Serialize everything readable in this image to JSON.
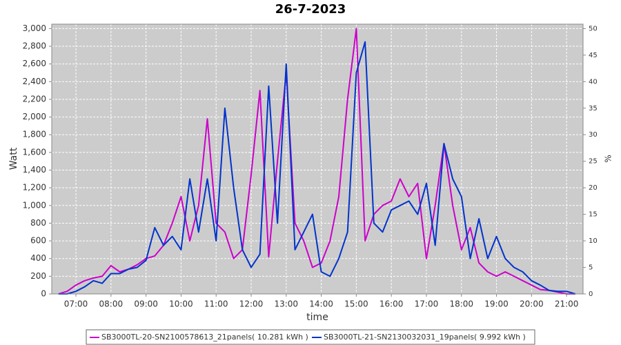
{
  "chart_data": {
    "type": "line",
    "title": "26-7-2023",
    "x_label": "time",
    "y_label": "Watt",
    "y2_label": "%",
    "x": [
      6.5,
      6.75,
      7,
      7.25,
      7.5,
      7.75,
      8,
      8.25,
      8.5,
      8.75,
      9,
      9.25,
      9.5,
      9.75,
      10,
      10.25,
      10.5,
      10.75,
      11,
      11.25,
      11.5,
      11.75,
      12,
      12.25,
      12.5,
      12.75,
      13,
      13.25,
      13.5,
      13.75,
      14,
      14.25,
      14.5,
      14.75,
      15,
      15.25,
      15.5,
      15.75,
      16,
      16.25,
      16.5,
      16.75,
      17,
      17.25,
      17.5,
      17.75,
      18,
      18.25,
      18.5,
      18.75,
      19,
      19.25,
      19.5,
      19.75,
      20,
      20.25,
      20.5,
      20.75,
      21,
      21.25
    ],
    "series": [
      {
        "name": "SB3000TL-20-SN2100578613_21panels( 10.281 kWh )",
        "color": "#cc00cc",
        "values": [
          0,
          30,
          100,
          150,
          180,
          200,
          320,
          250,
          280,
          330,
          400,
          430,
          550,
          800,
          1100,
          600,
          1000,
          1980,
          800,
          700,
          400,
          500,
          1350,
          2300,
          420,
          1500,
          2500,
          800,
          600,
          300,
          350,
          600,
          1100,
          2200,
          3000,
          600,
          900,
          1000,
          1050,
          1300,
          1100,
          1250,
          400,
          1000,
          1700,
          1000,
          500,
          750,
          350,
          250,
          200,
          250,
          200,
          150,
          100,
          50,
          40,
          20,
          0,
          0
        ]
      },
      {
        "name": "SB3000TL-21-SN2130032031_19panels( 9.992 kWh )",
        "color": "#0033cc",
        "values": [
          0,
          0,
          30,
          80,
          150,
          120,
          230,
          230,
          280,
          300,
          380,
          750,
          550,
          650,
          500,
          1300,
          700,
          1300,
          600,
          2100,
          1200,
          500,
          300,
          450,
          2350,
          800,
          2600,
          500,
          700,
          900,
          250,
          200,
          400,
          700,
          2500,
          2850,
          800,
          700,
          950,
          1000,
          1050,
          900,
          1250,
          550,
          1700,
          1300,
          1100,
          400,
          850,
          400,
          650,
          400,
          300,
          250,
          150,
          100,
          40,
          30,
          30,
          0
        ]
      }
    ],
    "xlim": [
      6.31,
      21.47
    ],
    "xticks": [
      {
        "value": 7,
        "label": "07:00"
      },
      {
        "value": 8,
        "label": "08:00"
      },
      {
        "value": 9,
        "label": "09:00"
      },
      {
        "value": 10,
        "label": "10:00"
      },
      {
        "value": 11,
        "label": "11:00"
      },
      {
        "value": 12,
        "label": "12:00"
      },
      {
        "value": 13,
        "label": "13:00"
      },
      {
        "value": 14,
        "label": "14:00"
      },
      {
        "value": 15,
        "label": "15:00"
      },
      {
        "value": 16,
        "label": "16:00"
      },
      {
        "value": 17,
        "label": "17:00"
      },
      {
        "value": 18,
        "label": "18:00"
      },
      {
        "value": 19,
        "label": "19:00"
      },
      {
        "value": 20,
        "label": "20:00"
      },
      {
        "value": 21,
        "label": "21:00"
      }
    ],
    "ylim": [
      0,
      3050
    ],
    "yticks": [
      0,
      200,
      400,
      600,
      800,
      {
        "value": 1000,
        "label": "1,000"
      },
      {
        "value": 1200,
        "label": "1,200"
      },
      {
        "value": 1400,
        "label": "1,400"
      },
      {
        "value": 1600,
        "label": "1,600"
      },
      {
        "value": 1800,
        "label": "1,800"
      },
      {
        "value": 2000,
        "label": "2,000"
      },
      {
        "value": 2200,
        "label": "2,200"
      },
      {
        "value": 2400,
        "label": "2,400"
      },
      {
        "value": 2600,
        "label": "2,600"
      },
      {
        "value": 2800,
        "label": "2,800"
      },
      {
        "value": 3000,
        "label": "3,000"
      }
    ],
    "y2lim": [
      0,
      50.83
    ],
    "y2ticks": [
      0,
      5,
      10,
      15,
      20,
      25,
      30,
      35,
      40,
      45,
      50
    ],
    "grid": true,
    "legend": "bottom"
  }
}
